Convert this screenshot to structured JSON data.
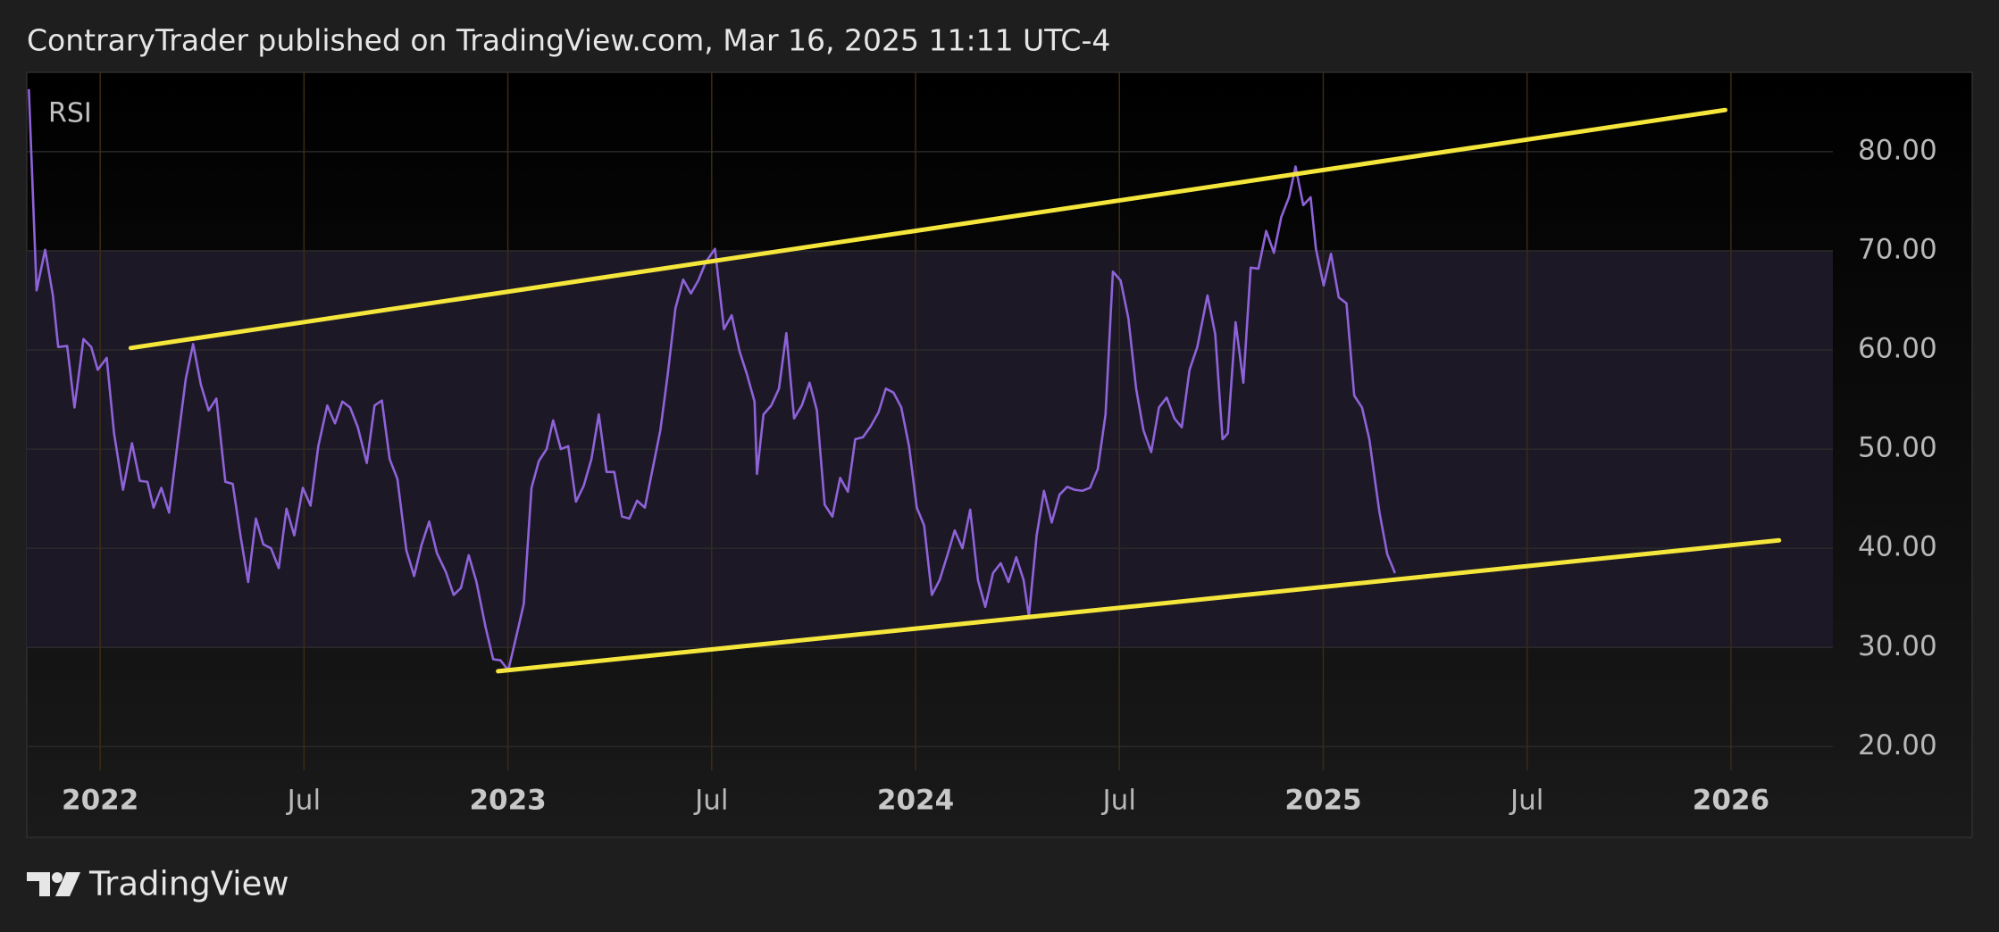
{
  "header": "ContraryTrader published on TradingView.com, Mar 16, 2025 11:11 UTC-4",
  "footer": "TradingView",
  "chart_data": {
    "type": "line",
    "legend": "RSI",
    "xlim": [
      2021.82,
      2026.25
    ],
    "ylim": [
      17.6,
      88
    ],
    "xticks": [
      {
        "value": 2022,
        "label": "2022"
      },
      {
        "value": 2022.5,
        "label": "Jul"
      },
      {
        "value": 2023,
        "label": "2023"
      },
      {
        "value": 2023.5,
        "label": "Jul"
      },
      {
        "value": 2024,
        "label": "2024"
      },
      {
        "value": 2024.5,
        "label": "Jul"
      },
      {
        "value": 2025,
        "label": "2025"
      },
      {
        "value": 2025.5,
        "label": "Jul"
      },
      {
        "value": 2026,
        "label": "2026"
      }
    ],
    "yticks": [
      {
        "value": 20,
        "label": "20.00"
      },
      {
        "value": 30,
        "label": "30.00"
      },
      {
        "value": 40,
        "label": "40.00"
      },
      {
        "value": 50,
        "label": "50.00"
      },
      {
        "value": 60,
        "label": "60.00"
      },
      {
        "value": 70,
        "label": "70.00"
      },
      {
        "value": 80,
        "label": "80.00"
      }
    ],
    "grid": true,
    "band": [
      30,
      70
    ],
    "band_color": "#1c1826",
    "series": [
      {
        "name": "RSI",
        "color": "#8e63d8",
        "x": [
          2021.825,
          2021.844,
          2021.865,
          2021.884,
          2021.897,
          2021.919,
          2021.937,
          2021.959,
          2021.978,
          2021.994,
          2022.016,
          2022.034,
          2022.056,
          2022.078,
          2022.097,
          2022.116,
          2022.131,
          2022.15,
          2022.169,
          2022.191,
          2022.21,
          2022.228,
          2022.247,
          2022.266,
          2022.285,
          2022.307,
          2022.325,
          2022.344,
          2022.363,
          2022.382,
          2022.4,
          2022.419,
          2022.438,
          2022.457,
          2022.476,
          2022.497,
          2022.516,
          2022.535,
          2022.557,
          2022.576,
          2022.594,
          2022.613,
          2022.632,
          2022.654,
          2022.673,
          2022.691,
          2022.71,
          2022.729,
          2022.751,
          2022.77,
          2022.788,
          2022.807,
          2022.826,
          2022.848,
          2022.867,
          2022.885,
          2022.904,
          2022.923,
          2022.945,
          2022.964,
          2022.982,
          2023.001,
          2023.02,
          2023.039,
          2023.058,
          2023.076,
          2023.095,
          2023.111,
          2023.13,
          2023.148,
          2023.167,
          2023.186,
          2023.205,
          2023.223,
          2023.242,
          2023.261,
          2023.28,
          2023.298,
          2023.317,
          2023.336,
          2023.355,
          2023.374,
          2023.392,
          2023.411,
          2023.43,
          2023.449,
          2023.467,
          2023.486,
          2023.508,
          2023.53,
          2023.549,
          2023.568,
          2023.586,
          2023.605,
          2023.611,
          2023.627,
          2023.646,
          2023.665,
          2023.683,
          2023.702,
          2023.721,
          2023.74,
          2023.758,
          2023.777,
          2023.796,
          2023.815,
          2023.834,
          2023.852,
          2023.871,
          2023.89,
          2023.909,
          2023.927,
          2023.946,
          2023.965,
          2023.984,
          2024.003,
          2024.021,
          2024.04,
          2024.059,
          2024.078,
          2024.096,
          2024.115,
          2024.134,
          2024.153,
          2024.171,
          2024.19,
          2024.209,
          2024.228,
          2024.247,
          2024.265,
          2024.278,
          2024.297,
          2024.315,
          2024.334,
          2024.353,
          2024.372,
          2024.39,
          2024.409,
          2024.428,
          2024.447,
          2024.466,
          2024.484,
          2024.503,
          2024.522,
          2024.541,
          2024.559,
          2024.578,
          2024.597,
          2024.616,
          2024.635,
          2024.653,
          2024.672,
          2024.691,
          2024.716,
          2024.735,
          2024.753,
          2024.766,
          2024.785,
          2024.804,
          2024.822,
          2024.841,
          2024.86,
          2024.879,
          2024.897,
          2024.916,
          2024.932,
          2024.951,
          2024.969,
          2024.982,
          2025.001,
          2025.019,
          2025.038,
          2025.057,
          2025.076,
          2025.095,
          2025.113,
          2025.126,
          2025.138,
          2025.157,
          2025.176
        ],
        "values": [
          86.3,
          66,
          70.1,
          65.5,
          60.3,
          60.4,
          54.2,
          61.1,
          60.3,
          58,
          59.2,
          51.6,
          45.9,
          50.6,
          46.8,
          46.7,
          44.1,
          46.1,
          43.6,
          51,
          57.1,
          60.6,
          56.5,
          53.9,
          55.1,
          46.7,
          46.5,
          41.3,
          36.6,
          43,
          40.4,
          40,
          38,
          44,
          41.3,
          46.1,
          44.3,
          50.3,
          54.4,
          52.6,
          54.8,
          54.2,
          52.2,
          48.6,
          54.4,
          54.9,
          49,
          47,
          39.8,
          37.2,
          40.3,
          42.7,
          39.5,
          37.6,
          35.3,
          36,
          39.3,
          36.6,
          32.1,
          28.8,
          28.7,
          27.7,
          31,
          34.4,
          46.1,
          48.8,
          50,
          52.9,
          50,
          50.3,
          44.7,
          46.3,
          49,
          53.5,
          47.7,
          47.7,
          43.2,
          43,
          44.8,
          44.1,
          48,
          51.9,
          57.5,
          64.2,
          67.1,
          65.7,
          67,
          68.9,
          70.2,
          62.1,
          63.5,
          59.9,
          57.6,
          54.8,
          47.5,
          53.5,
          54.4,
          56.1,
          61.7,
          53.1,
          54.4,
          56.7,
          53.9,
          44.4,
          43.2,
          47.1,
          45.7,
          51,
          51.2,
          52.3,
          53.7,
          56.1,
          55.7,
          54.2,
          50.3,
          44.1,
          42.3,
          35.3,
          36.8,
          39.3,
          41.8,
          40,
          43.9,
          36.8,
          34.1,
          37.5,
          38.5,
          36.6,
          39.1,
          36.8,
          33.1,
          41.3,
          45.8,
          42.6,
          45.4,
          46.2,
          45.9,
          45.8,
          46.1,
          48,
          53.5,
          67.9,
          67,
          63.2,
          56.1,
          51.9,
          49.7,
          54.2,
          55.2,
          53.1,
          52.2,
          58,
          60.3,
          65.5,
          61.6,
          51,
          51.6,
          62.8,
          56.7,
          68.3,
          68.2,
          72,
          69.8,
          73.4,
          75.4,
          78.5,
          74.6,
          75.4,
          70.2,
          66.5,
          69.7,
          65.3,
          64.7,
          55.4,
          54.2,
          51,
          47.1,
          43.6,
          39.4,
          37.5
        ]
      }
    ],
    "trendlines": [
      {
        "color": "#f5e63c",
        "x": [
          2022.075,
          2025.986
        ],
        "y": [
          60.2,
          84.2
        ]
      },
      {
        "color": "#f5e63c",
        "x": [
          2022.976,
          2026.118
        ],
        "y": [
          27.6,
          40.8
        ]
      }
    ]
  }
}
